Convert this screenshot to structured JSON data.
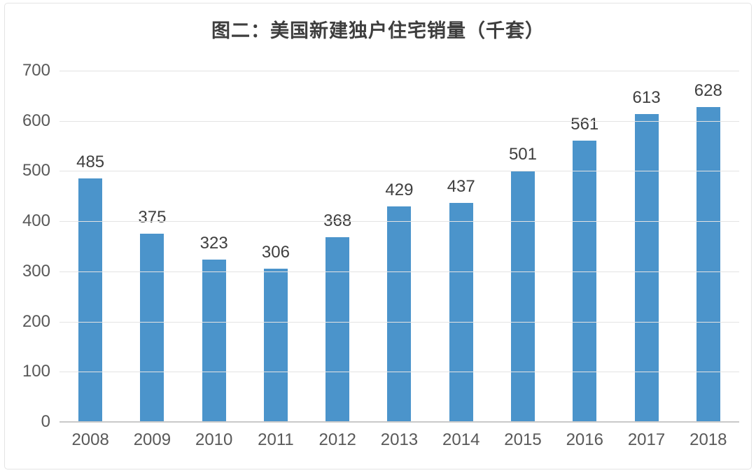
{
  "chart_data": {
    "type": "bar",
    "title": "图二：美国新建独户住宅销量（千套）",
    "categories": [
      "2008",
      "2009",
      "2010",
      "2011",
      "2012",
      "2013",
      "2014",
      "2015",
      "2016",
      "2017",
      "2018"
    ],
    "values": [
      485,
      375,
      323,
      306,
      368,
      429,
      437,
      501,
      561,
      613,
      628
    ],
    "xlabel": "",
    "ylabel": "",
    "ylim": [
      0,
      700
    ],
    "ytick_step": 100,
    "grid": true,
    "legend": false,
    "bar_color": "#4b94cb",
    "gridline_color": "#e3e3e3",
    "axis_line_color": "#c9c9c9",
    "label_color": "#3f3f3f",
    "tick_label_color": "#595959",
    "title_color": "#3e3e3e",
    "background_color": "#ffffff"
  }
}
